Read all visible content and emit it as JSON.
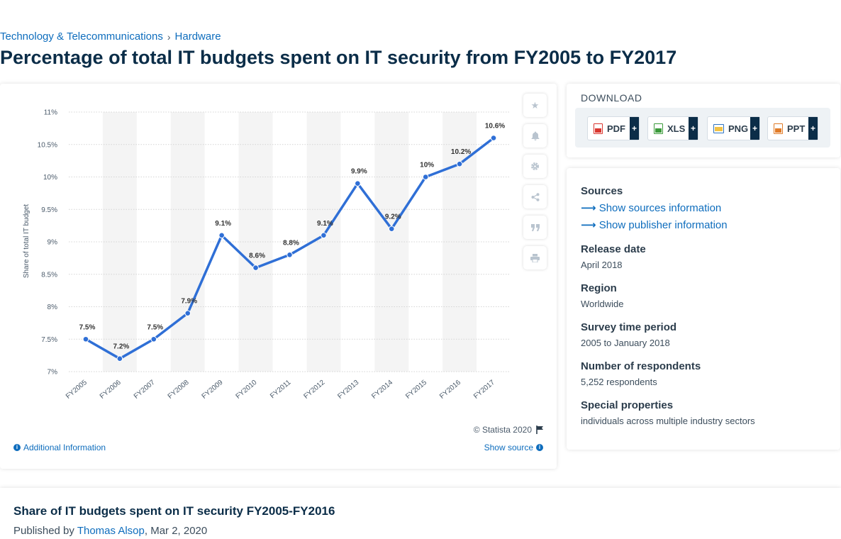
{
  "breadcrumb": {
    "item1": "Technology & Telecommunications",
    "sep": "›",
    "item2": "Hardware"
  },
  "page_title": "Percentage of total IT budgets spent on IT security from FY2005 to FY2017",
  "chart_footer": {
    "credit": "© Statista 2020",
    "additional_info": "Additional Information",
    "show_source": "Show source"
  },
  "download": {
    "title": "DOWNLOAD",
    "formats": [
      {
        "label": "PDF",
        "color": "#d9362f"
      },
      {
        "label": "XLS",
        "color": "#3b9a3a"
      },
      {
        "label": "PNG",
        "color": "#2f74c0"
      },
      {
        "label": "PPT",
        "color": "#e07b28"
      }
    ],
    "plus": "+"
  },
  "side_tools": [
    "star-icon",
    "bell-icon",
    "gear-icon",
    "share-icon",
    "quote-icon",
    "print-icon"
  ],
  "info": {
    "sources_head": "Sources",
    "sources_link": "Show sources information",
    "publisher_link": "Show publisher information",
    "release_head": "Release date",
    "release_val": "April 2018",
    "region_head": "Region",
    "region_val": "Worldwide",
    "period_head": "Survey time period",
    "period_val": "2005 to January 2018",
    "respondents_head": "Number of respondents",
    "respondents_val": "5,252 respondents",
    "special_head": "Special properties",
    "special_val": "individuals across multiple industry sectors"
  },
  "bottom": {
    "title": "Share of IT budgets spent on IT security FY2005-FY2016",
    "published_by": "Published by",
    "author": "Thomas Alsop",
    "date": ", Mar 2, 2020"
  },
  "colors": {
    "line": "#2f6fd6",
    "accent": "#0e6dbd",
    "navy": "#0b2d48"
  },
  "chart_data": {
    "type": "line",
    "title": "",
    "xlabel": "",
    "ylabel": "Share of total IT budget",
    "categories": [
      "FY2005",
      "FY2006",
      "FY2007",
      "FY2008",
      "FY2009",
      "FY2010",
      "FY2011",
      "FY2012",
      "FY2013",
      "FY2014",
      "FY2015",
      "FY2016",
      "FY2017"
    ],
    "values": [
      7.5,
      7.2,
      7.5,
      7.9,
      9.1,
      8.6,
      8.8,
      9.1,
      9.9,
      9.2,
      10,
      10.2,
      10.6
    ],
    "data_labels": [
      "7.5%",
      "7.2%",
      "7.5%",
      "7.9%",
      "9.1%",
      "8.6%",
      "8.8%",
      "9.1%",
      "9.9%",
      "9.2%",
      "10%",
      "10.2%",
      "10.6%"
    ],
    "ylim": [
      7,
      11
    ],
    "yticks": [
      7,
      7.5,
      8,
      8.5,
      9,
      9.5,
      10,
      10.5,
      11
    ],
    "ytick_labels": [
      "7%",
      "7.5%",
      "8%",
      "8.5%",
      "9%",
      "9.5%",
      "10%",
      "10.5%",
      "11%"
    ],
    "grid": true,
    "alternating_column_bands": true
  }
}
